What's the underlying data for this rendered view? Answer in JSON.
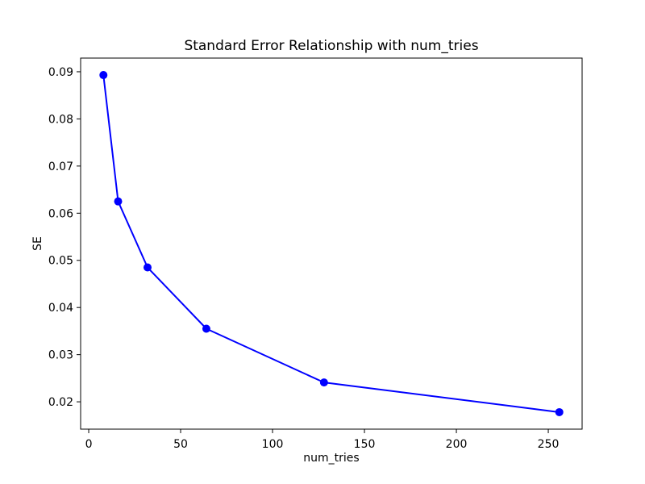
{
  "chart_data": {
    "type": "line",
    "title": "Standard Error Relationship with num_tries",
    "xlabel": "num_tries",
    "ylabel": "SE",
    "x": [
      8,
      16,
      32,
      64,
      128,
      256
    ],
    "y": [
      0.0893,
      0.0625,
      0.0485,
      0.0355,
      0.0241,
      0.0178
    ],
    "xticks": [
      0,
      50,
      100,
      150,
      200,
      250
    ],
    "xticklabels": [
      "0",
      "50",
      "100",
      "150",
      "200",
      "250"
    ],
    "yticks": [
      0.02,
      0.03,
      0.04,
      0.05,
      0.06,
      0.07,
      0.08,
      0.09
    ],
    "yticklabels": [
      "0.02",
      "0.03",
      "0.04",
      "0.05",
      "0.06",
      "0.07",
      "0.08",
      "0.09"
    ],
    "xlim": [
      -4.4,
      268.4
    ],
    "ylim": [
      0.0142,
      0.0929
    ],
    "line_color": "#0000ff",
    "marker": "o",
    "grid": false,
    "legend": null,
    "frame_color": "#000000",
    "background_color": "#ffffff"
  }
}
